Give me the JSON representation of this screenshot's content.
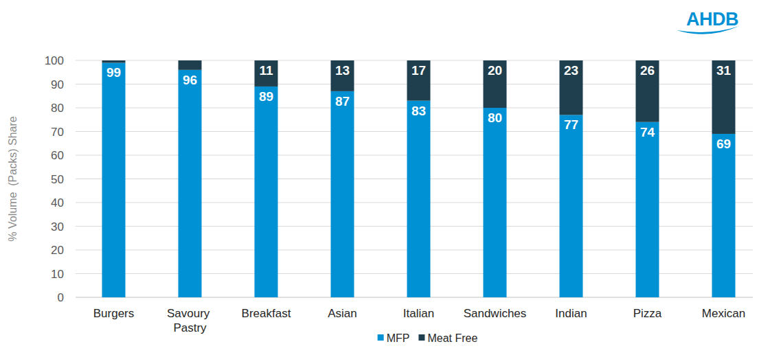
{
  "chart_data": {
    "type": "bar",
    "stacked": true,
    "data_labels": true,
    "grid": true,
    "legend": "bottom",
    "y_label": "% Volume  (Packs) Share",
    "annotations": [
      "AHDB"
    ],
    "categories": [
      "Burgers",
      "Savoury Pastry",
      "Breakfast",
      "Asian",
      "Italian",
      "Sandwiches",
      "Indian",
      "Pizza",
      "Mexican"
    ],
    "series": [
      {
        "name": "MFP",
        "color": "#0090d4",
        "values": [
          99,
          96,
          89,
          87,
          83,
          80,
          77,
          74,
          69
        ]
      },
      {
        "name": "Meat Free",
        "color": "#203f4e",
        "values": [
          1,
          4,
          11,
          13,
          17,
          20,
          23,
          26,
          31
        ],
        "value_labels": [
          null,
          null,
          "11",
          "13",
          "17",
          "20",
          "23",
          "26",
          "31"
        ]
      }
    ],
    "ylim": [
      0,
      100
    ],
    "yticks": [
      0,
      10,
      20,
      30,
      40,
      50,
      60,
      70,
      80,
      90,
      100
    ]
  }
}
